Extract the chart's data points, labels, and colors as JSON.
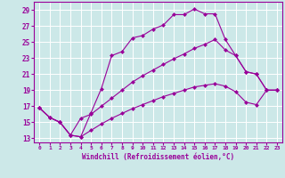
{
  "xlabel": "Windchill (Refroidissement éolien,°C)",
  "background_color": "#cce8e8",
  "line_color": "#990099",
  "xlim_min": -0.5,
  "xlim_max": 23.5,
  "ylim_min": 12.5,
  "ylim_max": 30.0,
  "yticks": [
    13,
    15,
    17,
    19,
    21,
    23,
    25,
    27,
    29
  ],
  "xticks": [
    0,
    1,
    2,
    3,
    4,
    5,
    6,
    7,
    8,
    9,
    10,
    11,
    12,
    13,
    14,
    15,
    16,
    17,
    18,
    19,
    20,
    21,
    22,
    23
  ],
  "line1_x": [
    0,
    1,
    2,
    3,
    4,
    5,
    6,
    7,
    8,
    9,
    10,
    11,
    12,
    13,
    14,
    15,
    16,
    17,
    18,
    19,
    20,
    21,
    22,
    23
  ],
  "line1_y": [
    16.8,
    15.6,
    15.0,
    13.4,
    13.2,
    16.2,
    19.2,
    23.3,
    23.8,
    25.5,
    25.8,
    26.6,
    27.1,
    28.4,
    28.4,
    29.1,
    28.5,
    28.5,
    25.3,
    23.3,
    21.3,
    21.0,
    19.0,
    19.0
  ],
  "line2_x": [
    0,
    1,
    2,
    3,
    4,
    5,
    6,
    7,
    8,
    9,
    10,
    11,
    12,
    13,
    14,
    15,
    16,
    17,
    18,
    19,
    20,
    21,
    22,
    23
  ],
  "line2_y": [
    16.8,
    15.6,
    15.0,
    13.4,
    15.5,
    16.0,
    17.0,
    18.0,
    19.0,
    20.0,
    20.8,
    21.5,
    22.2,
    22.9,
    23.5,
    24.2,
    24.7,
    25.3,
    24.0,
    23.3,
    21.3,
    21.0,
    19.0,
    19.0
  ],
  "line3_x": [
    0,
    1,
    2,
    3,
    4,
    5,
    6,
    7,
    8,
    9,
    10,
    11,
    12,
    13,
    14,
    15,
    16,
    17,
    18,
    19,
    20,
    21,
    22,
    23
  ],
  "line3_y": [
    16.8,
    15.6,
    15.0,
    13.4,
    13.2,
    14.0,
    14.8,
    15.5,
    16.1,
    16.7,
    17.2,
    17.7,
    18.2,
    18.6,
    19.0,
    19.4,
    19.6,
    19.8,
    19.5,
    18.8,
    17.5,
    17.2,
    19.0,
    19.0
  ],
  "marker": "D",
  "marker_size": 2.5,
  "linewidth": 0.8
}
